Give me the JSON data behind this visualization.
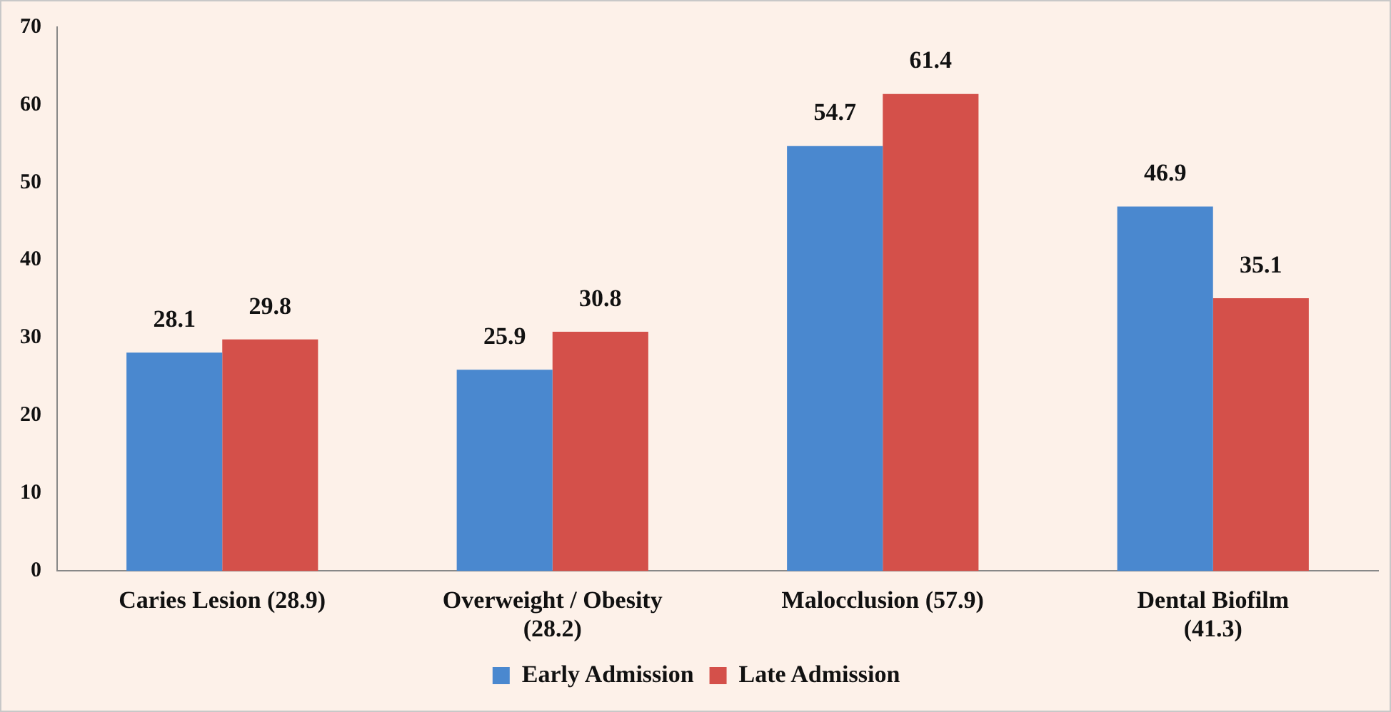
{
  "chart_data": {
    "type": "bar",
    "categories": [
      "Caries Lesion (28.9)",
      "Overweight / Obesity (28.2)",
      "Malocclusion (57.9)",
      "Dental Biofilm (41.3)"
    ],
    "series": [
      {
        "name": "Early Admission",
        "color": "#4a88cf",
        "values": [
          28.1,
          25.9,
          54.7,
          46.9
        ]
      },
      {
        "name": "Late Admission",
        "color": "#d4504a",
        "values": [
          29.8,
          30.8,
          61.4,
          35.1
        ]
      }
    ],
    "ylim": [
      0,
      70
    ],
    "yticks": [
      0,
      10,
      20,
      30,
      40,
      50,
      60,
      70
    ],
    "grid": false,
    "legend": "bottom",
    "data_labels": true
  }
}
